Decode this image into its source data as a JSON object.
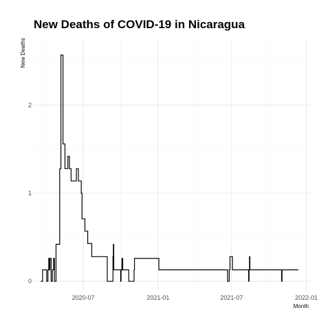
{
  "chart_data": {
    "type": "line",
    "line_shape": "step",
    "title": "New Deaths of COVID-19 in Nicaragua",
    "xlabel": "Month",
    "ylabel": "New Deaths",
    "x_ticks": [
      "2020-07",
      "2021-01",
      "2021-07",
      "2022-01"
    ],
    "y_ticks": [
      0,
      1,
      2
    ],
    "ylim": [
      -0.1,
      2.75
    ],
    "xlim": [
      "2020-03-01",
      "2022-01-10"
    ],
    "grid": true,
    "legend": "none",
    "line_color": "#000000",
    "series": [
      {
        "x": [
          "2020-03-18",
          "2020-03-23",
          "2020-04-02",
          "2020-04-03",
          "2020-04-05",
          "2020-04-07",
          "2020-04-08",
          "2020-04-10",
          "2020-04-13",
          "2020-04-14",
          "2020-04-16",
          "2020-04-19",
          "2020-04-21",
          "2020-04-25",
          "2020-04-29",
          "2020-05-04",
          "2020-05-06",
          "2020-05-07",
          "2020-05-10",
          "2020-05-12",
          "2020-05-14",
          "2020-05-17",
          "2020-05-19",
          "2020-05-21",
          "2020-05-24",
          "2020-05-28",
          "2020-06-01",
          "2020-06-06",
          "2020-06-10",
          "2020-06-14",
          "2020-06-17",
          "2020-06-19",
          "2020-06-21",
          "2020-06-26",
          "2020-06-28",
          "2020-07-01",
          "2020-07-05",
          "2020-07-08",
          "2020-07-09",
          "2020-07-12",
          "2020-07-16",
          "2020-07-18",
          "2020-07-22",
          "2020-08-04",
          "2020-08-08",
          "2020-08-17",
          "2020-08-29",
          "2020-09-12",
          "2020-09-13",
          "2020-09-14",
          "2020-09-15",
          "2020-09-16",
          "2020-10-01",
          "2020-10-02",
          "2020-10-04",
          "2020-10-06",
          "2020-10-10",
          "2020-10-20",
          "2020-10-21",
          "2020-11-03",
          "2020-11-04",
          "2021-01-03",
          "2021-01-04",
          "2021-06-20",
          "2021-06-21",
          "2021-06-22",
          "2021-06-25",
          "2021-06-27",
          "2021-07-03",
          "2021-07-04",
          "2021-08-12",
          "2021-08-13",
          "2021-08-14",
          "2021-08-15",
          "2021-11-01",
          "2021-11-02",
          "2021-12-12"
        ],
        "values": [
          0,
          0.13,
          0,
          0,
          0.13,
          0.26,
          0.13,
          0.26,
          0,
          0,
          0.13,
          0.26,
          0,
          0.42,
          0.42,
          1.28,
          1.28,
          2.57,
          2.57,
          1.56,
          1.56,
          1.28,
          1.28,
          1.28,
          1.42,
          1.28,
          1.14,
          1.14,
          1.14,
          1.28,
          1.28,
          1.14,
          1.14,
          1.0,
          0.71,
          0.71,
          0.57,
          0.57,
          0.57,
          0.43,
          0.43,
          0.43,
          0.28,
          0.28,
          0.28,
          0.28,
          0,
          0.28,
          0.42,
          0.13,
          0.13,
          0.13,
          0,
          0.13,
          0.26,
          0.13,
          0.13,
          0.13,
          0,
          0.13,
          0.26,
          0.13,
          0.13,
          0.13,
          0,
          0,
          0.13,
          0.28,
          0.13,
          0.13,
          0,
          0.13,
          0.28,
          0.13,
          0,
          0.13,
          0.13
        ]
      }
    ]
  }
}
